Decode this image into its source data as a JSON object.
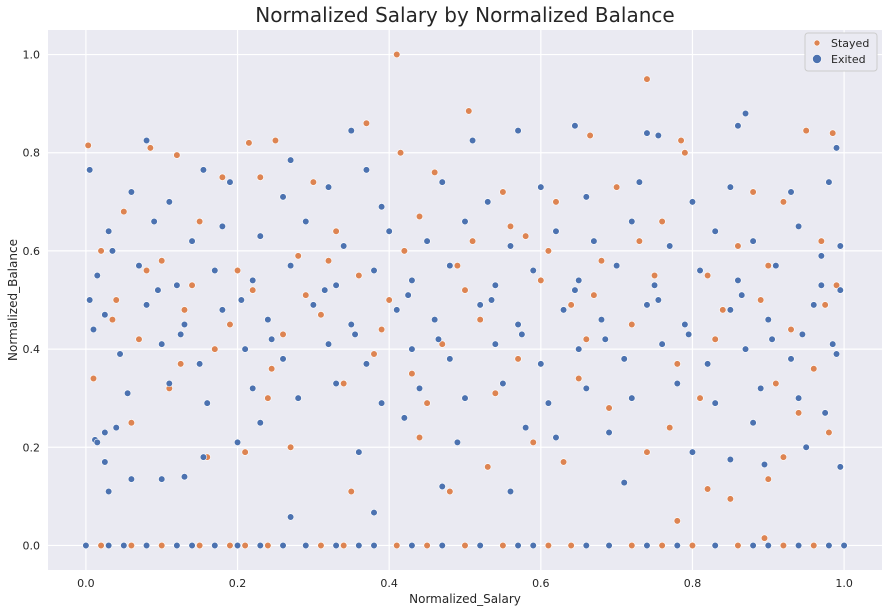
{
  "chart_data": {
    "type": "scatter",
    "title": "Normalized Salary by Normalized Balance",
    "xlabel": "Normalized_Salary",
    "ylabel": "Normalized_Balance",
    "xlim": [
      -0.05,
      1.05
    ],
    "ylim": [
      -0.05,
      1.05
    ],
    "xticks": [
      "0.0",
      "0.2",
      "0.4",
      "0.6",
      "0.8",
      "1.0"
    ],
    "yticks": [
      "0.0",
      "0.2",
      "0.4",
      "0.6",
      "0.8",
      "1.0"
    ],
    "grid": true,
    "legend_position": "top-right",
    "series": [
      {
        "name": "Stayed",
        "color": "#dd8452",
        "points": [
          [
            0.003,
            0.815
          ],
          [
            0.41,
            1.0
          ],
          [
            0.74,
            0.95
          ],
          [
            0.505,
            0.885
          ],
          [
            0.37,
            0.86
          ],
          [
            0.085,
            0.81
          ],
          [
            0.12,
            0.795
          ],
          [
            0.215,
            0.82
          ],
          [
            0.25,
            0.825
          ],
          [
            0.665,
            0.835
          ],
          [
            0.785,
            0.825
          ],
          [
            0.95,
            0.845
          ],
          [
            0.985,
            0.84
          ],
          [
            0.415,
            0.8
          ],
          [
            0.79,
            0.8
          ],
          [
            0.18,
            0.75
          ],
          [
            0.23,
            0.75
          ],
          [
            0.3,
            0.74
          ],
          [
            0.46,
            0.76
          ],
          [
            0.55,
            0.72
          ],
          [
            0.62,
            0.7
          ],
          [
            0.7,
            0.73
          ],
          [
            0.88,
            0.72
          ],
          [
            0.92,
            0.7
          ],
          [
            0.05,
            0.68
          ],
          [
            0.15,
            0.66
          ],
          [
            0.33,
            0.64
          ],
          [
            0.44,
            0.67
          ],
          [
            0.58,
            0.63
          ],
          [
            0.76,
            0.66
          ],
          [
            0.97,
            0.62
          ],
          [
            0.02,
            0.6
          ],
          [
            0.1,
            0.58
          ],
          [
            0.2,
            0.56
          ],
          [
            0.28,
            0.59
          ],
          [
            0.36,
            0.55
          ],
          [
            0.49,
            0.57
          ],
          [
            0.6,
            0.54
          ],
          [
            0.68,
            0.58
          ],
          [
            0.82,
            0.55
          ],
          [
            0.9,
            0.57
          ],
          [
            0.99,
            0.53
          ],
          [
            0.04,
            0.5
          ],
          [
            0.13,
            0.48
          ],
          [
            0.22,
            0.52
          ],
          [
            0.31,
            0.47
          ],
          [
            0.4,
            0.5
          ],
          [
            0.52,
            0.46
          ],
          [
            0.64,
            0.49
          ],
          [
            0.72,
            0.45
          ],
          [
            0.84,
            0.48
          ],
          [
            0.93,
            0.44
          ],
          [
            0.07,
            0.42
          ],
          [
            0.17,
            0.4
          ],
          [
            0.26,
            0.43
          ],
          [
            0.38,
            0.39
          ],
          [
            0.47,
            0.41
          ],
          [
            0.57,
            0.38
          ],
          [
            0.66,
            0.42
          ],
          [
            0.78,
            0.37
          ],
          [
            0.87,
            0.4
          ],
          [
            0.96,
            0.36
          ],
          [
            0.01,
            0.34
          ],
          [
            0.11,
            0.32
          ],
          [
            0.24,
            0.3
          ],
          [
            0.34,
            0.33
          ],
          [
            0.45,
            0.29
          ],
          [
            0.54,
            0.31
          ],
          [
            0.69,
            0.28
          ],
          [
            0.81,
            0.3
          ],
          [
            0.94,
            0.27
          ],
          [
            0.06,
            0.25
          ],
          [
            0.16,
            0.18
          ],
          [
            0.35,
            0.11
          ],
          [
            0.48,
            0.11
          ],
          [
            0.44,
            0.22
          ],
          [
            0.59,
            0.21
          ],
          [
            0.77,
            0.24
          ],
          [
            0.85,
            0.095
          ],
          [
            0.82,
            0.115
          ],
          [
            0.78,
            0.05
          ],
          [
            0.9,
            0.135
          ],
          [
            0.895,
            0.015
          ],
          [
            0.63,
            0.17
          ],
          [
            0.98,
            0.23
          ],
          [
            0.27,
            0.2
          ],
          [
            0.21,
            0.19
          ],
          [
            0.53,
            0.16
          ],
          [
            0.74,
            0.19
          ],
          [
            0.92,
            0.18
          ],
          [
            0.14,
            0.53
          ],
          [
            0.42,
            0.6
          ],
          [
            0.5,
            0.52
          ],
          [
            0.61,
            0.6
          ],
          [
            0.73,
            0.62
          ],
          [
            0.86,
            0.61
          ],
          [
            0.035,
            0.46
          ],
          [
            0.19,
            0.45
          ],
          [
            0.29,
            0.51
          ],
          [
            0.39,
            0.44
          ],
          [
            0.51,
            0.62
          ],
          [
            0.67,
            0.51
          ],
          [
            0.75,
            0.55
          ],
          [
            0.89,
            0.5
          ],
          [
            0.975,
            0.49
          ],
          [
            0.08,
            0.56
          ],
          [
            0.32,
            0.58
          ],
          [
            0.56,
            0.65
          ],
          [
            0.71,
            0.38
          ],
          [
            0.83,
            0.42
          ],
          [
            0.91,
            0.33
          ],
          [
            0.125,
            0.37
          ],
          [
            0.245,
            0.36
          ],
          [
            0.43,
            0.35
          ],
          [
            0.65,
            0.34
          ]
        ],
        "zero_balance_x": [
          0.02,
          0.06,
          0.1,
          0.15,
          0.19,
          0.21,
          0.24,
          0.31,
          0.34,
          0.41,
          0.45,
          0.5,
          0.55,
          0.61,
          0.64,
          0.72,
          0.76,
          0.8,
          0.86,
          0.92,
          0.96
        ]
      },
      {
        "name": "Exited",
        "color": "#4c72b0",
        "points": [
          [
            0.08,
            0.825
          ],
          [
            0.87,
            0.88
          ],
          [
            0.86,
            0.855
          ],
          [
            0.645,
            0.855
          ],
          [
            0.51,
            0.825
          ],
          [
            0.57,
            0.845
          ],
          [
            0.35,
            0.845
          ],
          [
            0.005,
            0.765
          ],
          [
            0.155,
            0.765
          ],
          [
            0.27,
            0.785
          ],
          [
            0.37,
            0.765
          ],
          [
            0.74,
            0.84
          ],
          [
            0.755,
            0.835
          ],
          [
            0.99,
            0.81
          ],
          [
            0.06,
            0.72
          ],
          [
            0.11,
            0.7
          ],
          [
            0.19,
            0.74
          ],
          [
            0.26,
            0.71
          ],
          [
            0.32,
            0.73
          ],
          [
            0.39,
            0.69
          ],
          [
            0.47,
            0.74
          ],
          [
            0.53,
            0.7
          ],
          [
            0.6,
            0.73
          ],
          [
            0.66,
            0.71
          ],
          [
            0.73,
            0.74
          ],
          [
            0.8,
            0.7
          ],
          [
            0.85,
            0.73
          ],
          [
            0.93,
            0.72
          ],
          [
            0.98,
            0.74
          ],
          [
            0.03,
            0.64
          ],
          [
            0.09,
            0.66
          ],
          [
            0.14,
            0.62
          ],
          [
            0.18,
            0.65
          ],
          [
            0.23,
            0.63
          ],
          [
            0.29,
            0.66
          ],
          [
            0.34,
            0.61
          ],
          [
            0.4,
            0.64
          ],
          [
            0.45,
            0.62
          ],
          [
            0.5,
            0.66
          ],
          [
            0.56,
            0.61
          ],
          [
            0.62,
            0.64
          ],
          [
            0.67,
            0.62
          ],
          [
            0.72,
            0.66
          ],
          [
            0.77,
            0.61
          ],
          [
            0.83,
            0.64
          ],
          [
            0.88,
            0.62
          ],
          [
            0.94,
            0.65
          ],
          [
            0.995,
            0.61
          ],
          [
            0.015,
            0.55
          ],
          [
            0.07,
            0.57
          ],
          [
            0.12,
            0.53
          ],
          [
            0.17,
            0.56
          ],
          [
            0.22,
            0.54
          ],
          [
            0.27,
            0.57
          ],
          [
            0.33,
            0.53
          ],
          [
            0.38,
            0.56
          ],
          [
            0.43,
            0.54
          ],
          [
            0.48,
            0.57
          ],
          [
            0.54,
            0.53
          ],
          [
            0.59,
            0.56
          ],
          [
            0.65,
            0.54
          ],
          [
            0.7,
            0.57
          ],
          [
            0.75,
            0.53
          ],
          [
            0.81,
            0.56
          ],
          [
            0.86,
            0.54
          ],
          [
            0.91,
            0.57
          ],
          [
            0.97,
            0.53
          ],
          [
            0.025,
            0.47
          ],
          [
            0.08,
            0.49
          ],
          [
            0.13,
            0.45
          ],
          [
            0.18,
            0.48
          ],
          [
            0.24,
            0.46
          ],
          [
            0.3,
            0.49
          ],
          [
            0.35,
            0.45
          ],
          [
            0.41,
            0.48
          ],
          [
            0.46,
            0.46
          ],
          [
            0.52,
            0.49
          ],
          [
            0.57,
            0.45
          ],
          [
            0.63,
            0.48
          ],
          [
            0.68,
            0.46
          ],
          [
            0.74,
            0.49
          ],
          [
            0.79,
            0.45
          ],
          [
            0.85,
            0.48
          ],
          [
            0.9,
            0.46
          ],
          [
            0.96,
            0.49
          ],
          [
            0.045,
            0.39
          ],
          [
            0.1,
            0.41
          ],
          [
            0.15,
            0.37
          ],
          [
            0.21,
            0.4
          ],
          [
            0.26,
            0.38
          ],
          [
            0.32,
            0.41
          ],
          [
            0.37,
            0.37
          ],
          [
            0.43,
            0.4
          ],
          [
            0.48,
            0.38
          ],
          [
            0.54,
            0.41
          ],
          [
            0.6,
            0.37
          ],
          [
            0.65,
            0.4
          ],
          [
            0.71,
            0.38
          ],
          [
            0.76,
            0.41
          ],
          [
            0.82,
            0.37
          ],
          [
            0.87,
            0.4
          ],
          [
            0.93,
            0.38
          ],
          [
            0.985,
            0.41
          ],
          [
            0.055,
            0.31
          ],
          [
            0.11,
            0.33
          ],
          [
            0.16,
            0.29
          ],
          [
            0.22,
            0.32
          ],
          [
            0.28,
            0.3
          ],
          [
            0.33,
            0.33
          ],
          [
            0.39,
            0.29
          ],
          [
            0.44,
            0.32
          ],
          [
            0.5,
            0.3
          ],
          [
            0.55,
            0.33
          ],
          [
            0.61,
            0.29
          ],
          [
            0.66,
            0.32
          ],
          [
            0.72,
            0.3
          ],
          [
            0.78,
            0.33
          ],
          [
            0.83,
            0.29
          ],
          [
            0.89,
            0.32
          ],
          [
            0.94,
            0.3
          ],
          [
            0.012,
            0.215
          ],
          [
            0.015,
            0.21
          ],
          [
            0.025,
            0.23
          ],
          [
            0.04,
            0.24
          ],
          [
            0.03,
            0.11
          ],
          [
            0.025,
            0.17
          ],
          [
            0.06,
            0.135
          ],
          [
            0.1,
            0.135
          ],
          [
            0.13,
            0.14
          ],
          [
            0.2,
            0.21
          ],
          [
            0.27,
            0.058
          ],
          [
            0.38,
            0.067
          ],
          [
            0.47,
            0.12
          ],
          [
            0.56,
            0.11
          ],
          [
            0.71,
            0.128
          ],
          [
            0.85,
            0.175
          ],
          [
            0.895,
            0.165
          ],
          [
            0.995,
            0.16
          ],
          [
            0.36,
            0.19
          ],
          [
            0.49,
            0.21
          ],
          [
            0.62,
            0.22
          ],
          [
            0.8,
            0.19
          ],
          [
            0.95,
            0.2
          ],
          [
            0.155,
            0.18
          ],
          [
            0.23,
            0.25
          ],
          [
            0.42,
            0.26
          ],
          [
            0.58,
            0.24
          ],
          [
            0.69,
            0.23
          ],
          [
            0.88,
            0.25
          ],
          [
            0.975,
            0.27
          ],
          [
            0.005,
            0.5
          ],
          [
            0.995,
            0.52
          ],
          [
            0.01,
            0.44
          ],
          [
            0.99,
            0.39
          ],
          [
            0.035,
            0.6
          ],
          [
            0.97,
            0.59
          ],
          [
            0.095,
            0.52
          ],
          [
            0.205,
            0.5
          ],
          [
            0.315,
            0.52
          ],
          [
            0.425,
            0.51
          ],
          [
            0.535,
            0.5
          ],
          [
            0.645,
            0.52
          ],
          [
            0.755,
            0.5
          ],
          [
            0.865,
            0.51
          ],
          [
            0.945,
            0.43
          ],
          [
            0.125,
            0.43
          ],
          [
            0.245,
            0.42
          ],
          [
            0.355,
            0.43
          ],
          [
            0.465,
            0.42
          ],
          [
            0.575,
            0.43
          ],
          [
            0.685,
            0.42
          ],
          [
            0.795,
            0.43
          ],
          [
            0.905,
            0.42
          ]
        ],
        "zero_balance_x": [
          0.0,
          0.03,
          0.05,
          0.08,
          0.12,
          0.14,
          0.17,
          0.2,
          0.23,
          0.26,
          0.29,
          0.33,
          0.36,
          0.38,
          0.43,
          0.47,
          0.52,
          0.57,
          0.59,
          0.66,
          0.69,
          0.74,
          0.78,
          0.83,
          0.88,
          0.9,
          0.94,
          0.98,
          1.0
        ]
      }
    ]
  }
}
